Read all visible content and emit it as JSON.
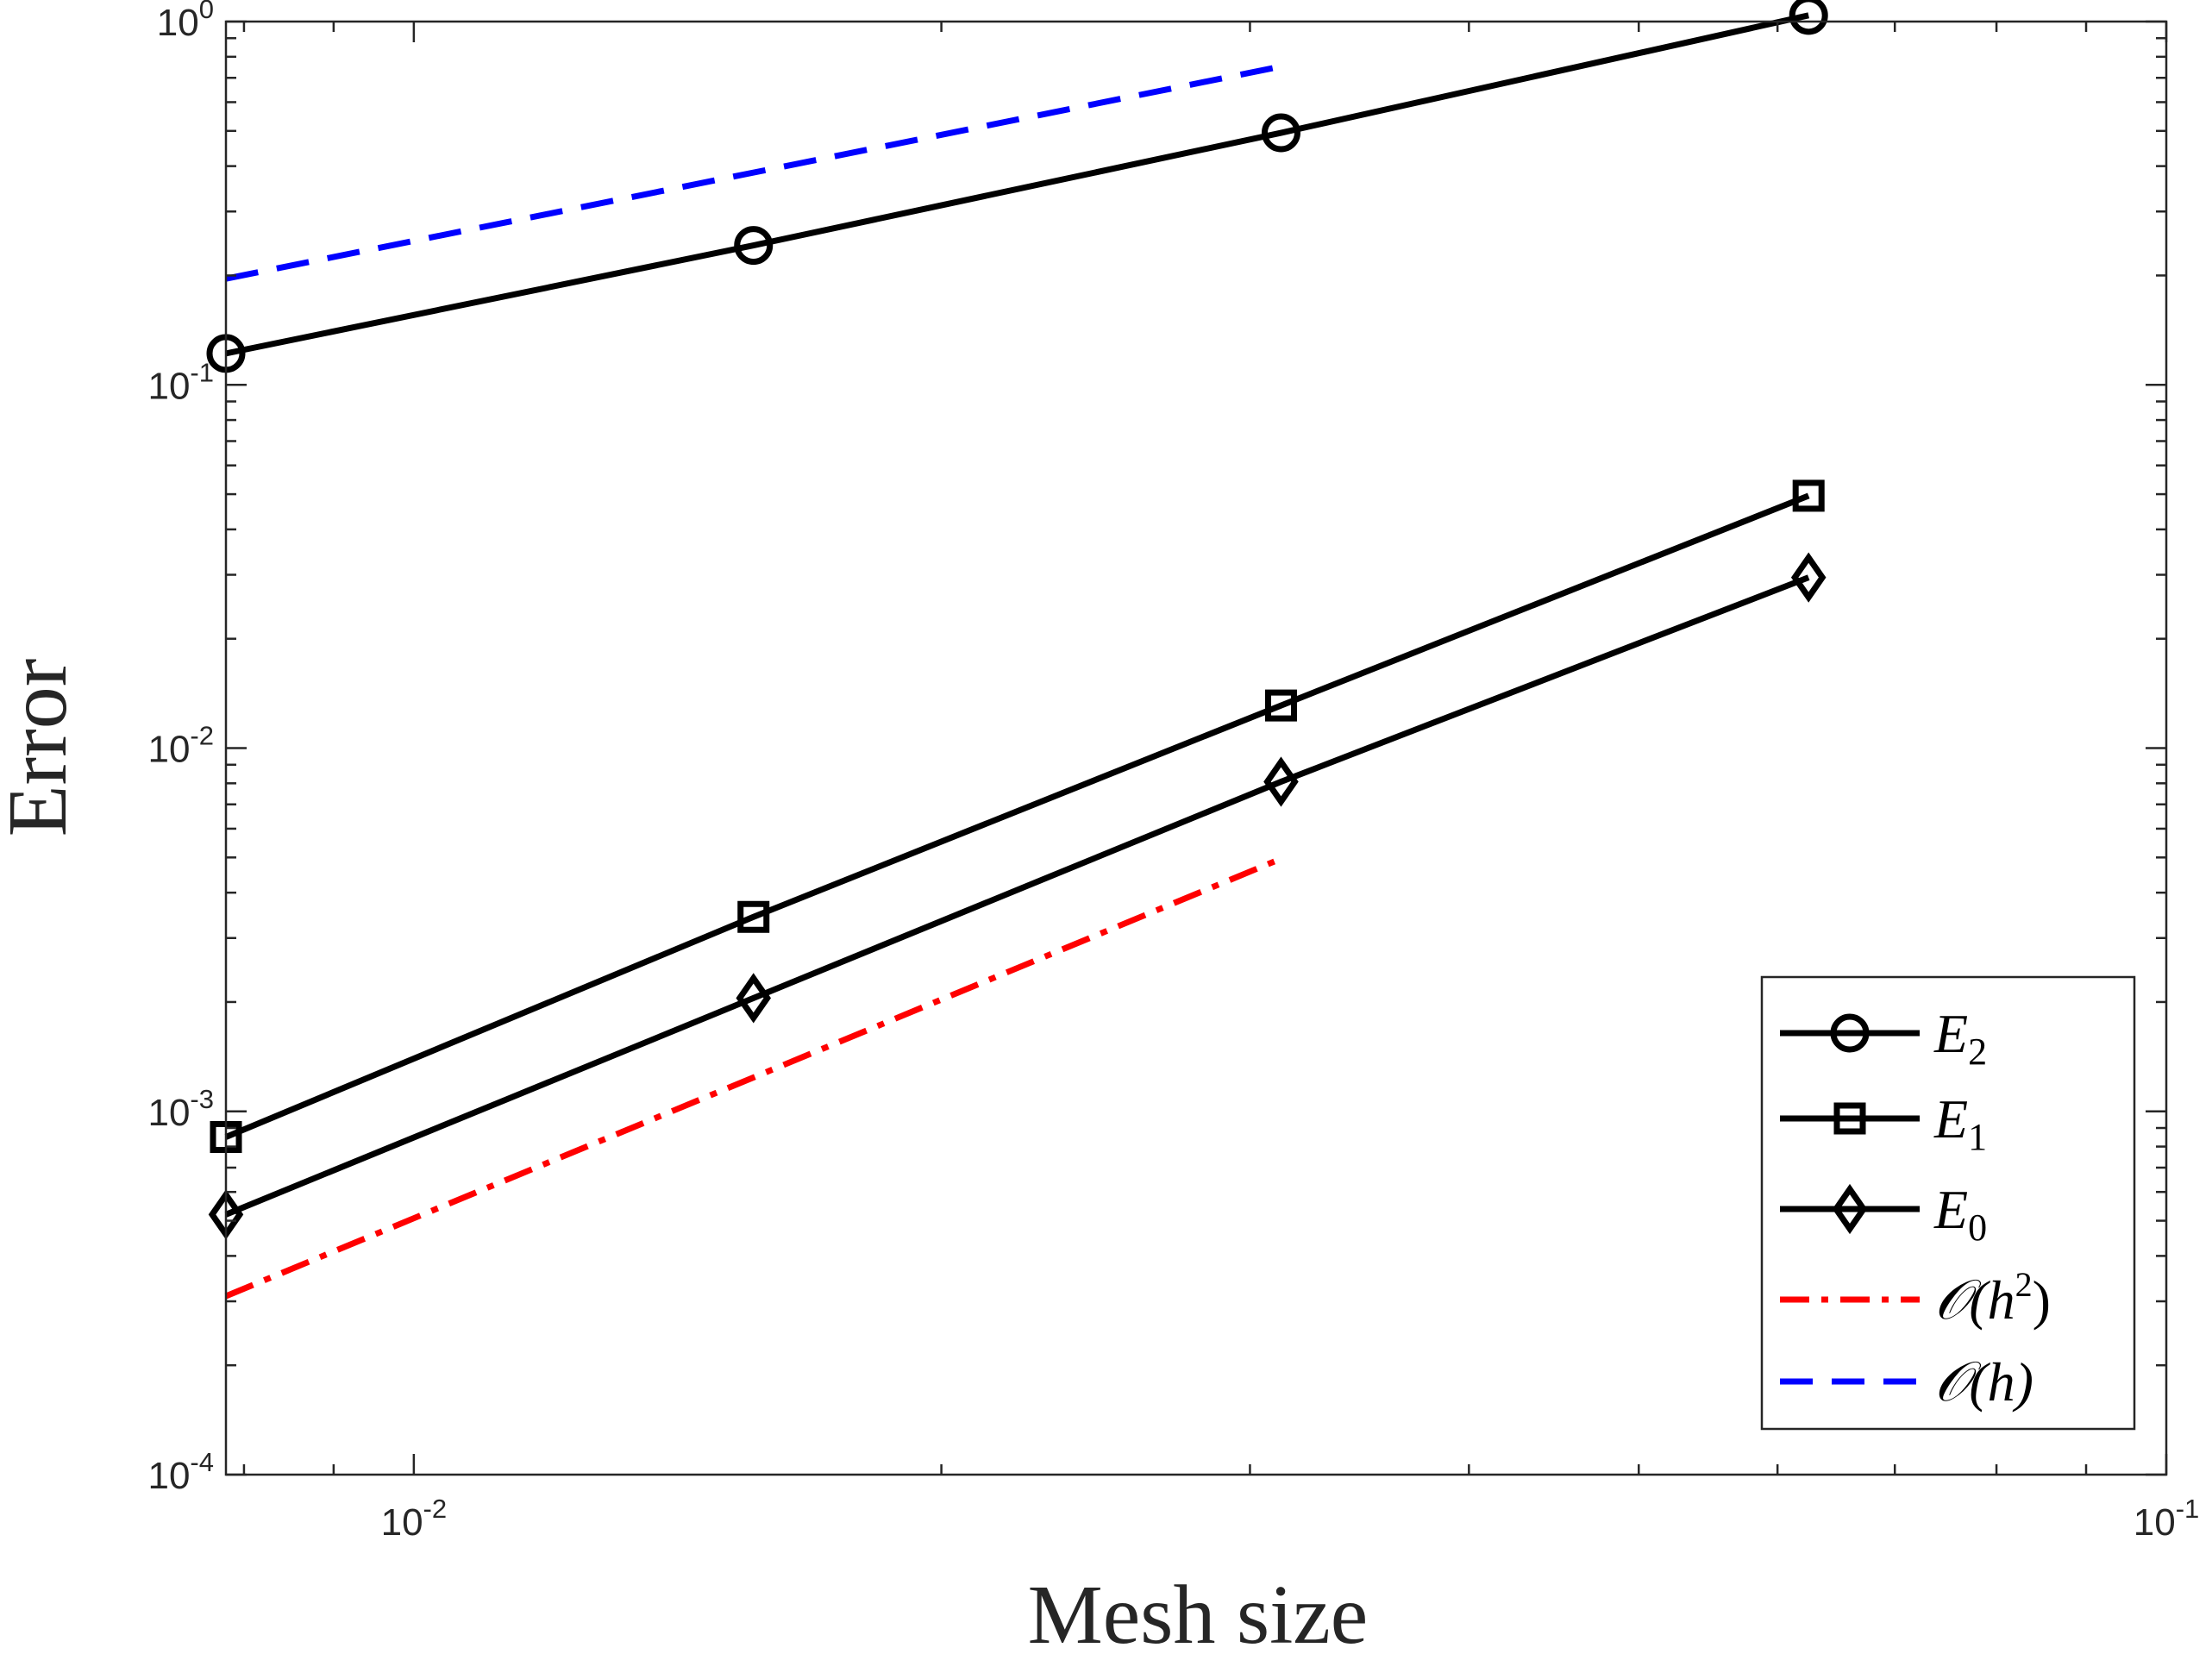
{
  "chart_data": {
    "type": "line",
    "xscale": "log",
    "yscale": "log",
    "xlabel": "Mesh size",
    "ylabel": "Error",
    "xlim": [
      0.0078125,
      0.1
    ],
    "ylim": [
      0.0001,
      1
    ],
    "grid": false,
    "legend_position": "bottom-right",
    "x_ticks": [
      {
        "value": 0.01,
        "base": "10",
        "exp": "-2"
      },
      {
        "value": 0.1,
        "base": "10",
        "exp": "-1"
      }
    ],
    "y_ticks": [
      {
        "value": 0.0001,
        "base": "10",
        "exp": "-4"
      },
      {
        "value": 0.001,
        "base": "10",
        "exp": "-3"
      },
      {
        "value": 0.01,
        "base": "10",
        "exp": "-2"
      },
      {
        "value": 0.1,
        "base": "10",
        "exp": "-1"
      },
      {
        "value": 1,
        "base": "10",
        "exp": "0"
      }
    ],
    "series": [
      {
        "name": "E2",
        "label_main": "E",
        "label_sub": "2",
        "marker": "circle",
        "color": "#000000",
        "dash": "solid",
        "x": [
          0.0078125,
          0.015625,
          0.03125,
          0.0625
        ],
        "y": [
          0.122,
          0.242,
          0.494,
          1.04
        ]
      },
      {
        "name": "E1",
        "label_main": "E",
        "label_sub": "1",
        "marker": "square",
        "color": "#000000",
        "dash": "solid",
        "x": [
          0.0078125,
          0.015625,
          0.03125,
          0.0625
        ],
        "y": [
          0.00085,
          0.00343,
          0.0131,
          0.0495
        ]
      },
      {
        "name": "E0",
        "label_main": "E",
        "label_sub": "0",
        "marker": "diamond",
        "color": "#000000",
        "dash": "solid",
        "x": [
          0.0078125,
          0.015625,
          0.03125,
          0.0625
        ],
        "y": [
          0.00052,
          0.00205,
          0.00808,
          0.0295
        ]
      },
      {
        "name": "O(h^2)",
        "label_main": "𝒪(h",
        "label_sup": "2",
        "label_end": ")",
        "marker": "none",
        "color": "#ff0000",
        "dash": "dashdot",
        "x": [
          0.0078125,
          0.03125
        ],
        "y": [
          0.00031,
          0.00496
        ]
      },
      {
        "name": "O(h)",
        "label_main": "𝒪(h)",
        "marker": "none",
        "color": "#0000ff",
        "dash": "dashed",
        "x": [
          0.0078125,
          0.03125
        ],
        "y": [
          0.196,
          0.752
        ]
      }
    ]
  }
}
